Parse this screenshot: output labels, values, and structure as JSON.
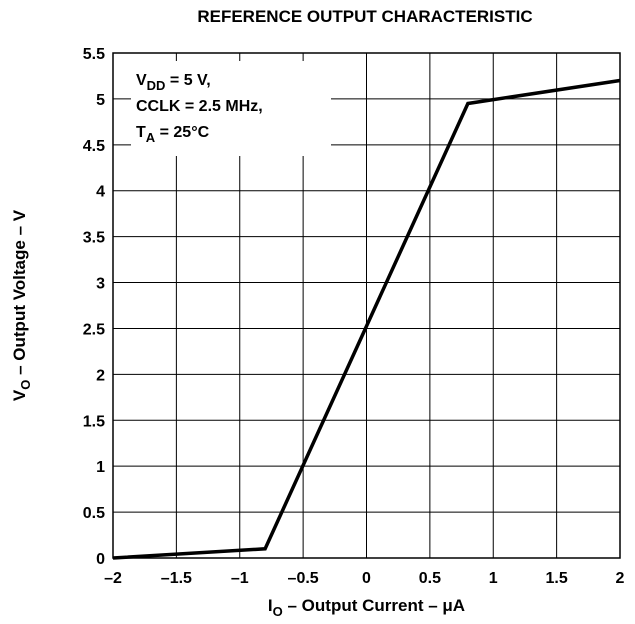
{
  "chart_data": {
    "type": "line",
    "title": "REFERENCE OUTPUT CHARACTERISTIC",
    "xlabel": {
      "main": "I",
      "sub": "O",
      "rest": " – Output Current – μA"
    },
    "ylabel": {
      "main": "V",
      "sub": "O",
      "rest": " – Output Voltage – V"
    },
    "xlim": [
      -2,
      2
    ],
    "ylim": [
      0,
      5.5
    ],
    "x_ticks": [
      -2,
      -1.5,
      -1,
      -0.5,
      0,
      0.5,
      1,
      1.5,
      2
    ],
    "x_tick_labels": [
      "–2",
      "–1.5",
      "–1",
      "–0.5",
      "0",
      "0.5",
      "1",
      "1.5",
      "2"
    ],
    "y_ticks": [
      0,
      0.5,
      1,
      1.5,
      2,
      2.5,
      3,
      3.5,
      4,
      4.5,
      5,
      5.5
    ],
    "y_tick_labels": [
      "0",
      "0.5",
      "1",
      "1.5",
      "2",
      "2.5",
      "3",
      "3.5",
      "4",
      "4.5",
      "5",
      "5.5"
    ],
    "grid": true,
    "series": [
      {
        "x": [
          -2,
          -0.8,
          0.8,
          2
        ],
        "y": [
          0,
          0.1,
          4.95,
          5.2
        ]
      }
    ],
    "annotations": [
      {
        "main": "V",
        "sub": "DD",
        "rest": " = 5 V,"
      },
      {
        "main": "CCLK = 2.5 MHz,",
        "sub": "",
        "rest": ""
      },
      {
        "main": "T",
        "sub": "A",
        "rest": " = 25°C"
      }
    ],
    "colors": {
      "line": "#000000",
      "grid": "#000000",
      "background": "#ffffff"
    }
  }
}
